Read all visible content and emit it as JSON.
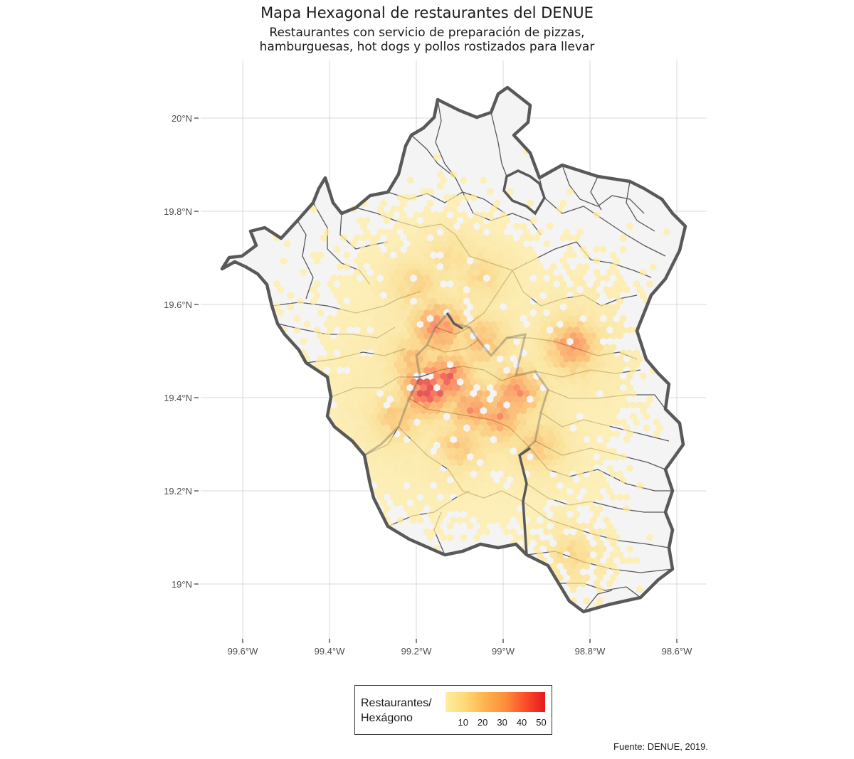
{
  "title": "Mapa Hexagonal de restaurantes del DENUE",
  "subtitle": {
    "line1": "Restaurantes con servicio de preparación de pizzas,",
    "line2": "hamburguesas, hot dogs y pollos rostizados para llevar"
  },
  "axes": {
    "x_ticks": [
      "99.6°W",
      "99.4°W",
      "99.2°W",
      "99°W",
      "98.8°W",
      "98.6°W"
    ],
    "y_ticks": [
      "20°N",
      "19.8°N",
      "19.6°N",
      "19.4°N",
      "19.2°N",
      "19°N"
    ]
  },
  "legend": {
    "title_line1": "Restaurantes/",
    "title_line2": "Hexágono",
    "ticks": [
      "10",
      "20",
      "30",
      "40",
      "50"
    ],
    "colors": [
      "#ffeda0",
      "#fed976",
      "#feb24c",
      "#fd8d3c",
      "#fc4e2a",
      "#e31a1c"
    ]
  },
  "caption": "Fuente: DENUE, 2019.",
  "colors": {
    "land": "#f4f4f4",
    "boundary": "#595959",
    "grid": "#d9d9d9"
  },
  "chart_data": {
    "type": "heatmap",
    "xlim": [
      -99.67,
      -98.55
    ],
    "ylim": [
      18.9,
      20.12
    ],
    "grid": true,
    "legend_position": "bottom",
    "value_range": [
      1,
      52
    ],
    "clusters": [
      {
        "lon": -99.17,
        "lat": 19.42,
        "peak": 52
      },
      {
        "lon": -99.13,
        "lat": 19.44,
        "peak": 40
      },
      {
        "lon": -99.07,
        "lat": 19.38,
        "peak": 30
      },
      {
        "lon": -99.01,
        "lat": 19.36,
        "peak": 28
      },
      {
        "lon": -98.97,
        "lat": 19.41,
        "peak": 30
      },
      {
        "lon": -99.15,
        "lat": 19.55,
        "peak": 32
      },
      {
        "lon": -99.2,
        "lat": 19.48,
        "peak": 18
      },
      {
        "lon": -99.24,
        "lat": 19.36,
        "peak": 15
      },
      {
        "lon": -99.1,
        "lat": 19.3,
        "peak": 15
      },
      {
        "lon": -98.92,
        "lat": 19.3,
        "peak": 14
      },
      {
        "lon": -99.05,
        "lat": 19.52,
        "peak": 18
      },
      {
        "lon": -98.84,
        "lat": 19.51,
        "peak": 30
      },
      {
        "lon": -99.2,
        "lat": 19.64,
        "peak": 10
      },
      {
        "lon": -99.05,
        "lat": 19.66,
        "peak": 8
      },
      {
        "lon": -99.12,
        "lat": 19.7,
        "peak": 6
      },
      {
        "lon": -98.84,
        "lat": 19.06,
        "peak": 8
      }
    ]
  }
}
